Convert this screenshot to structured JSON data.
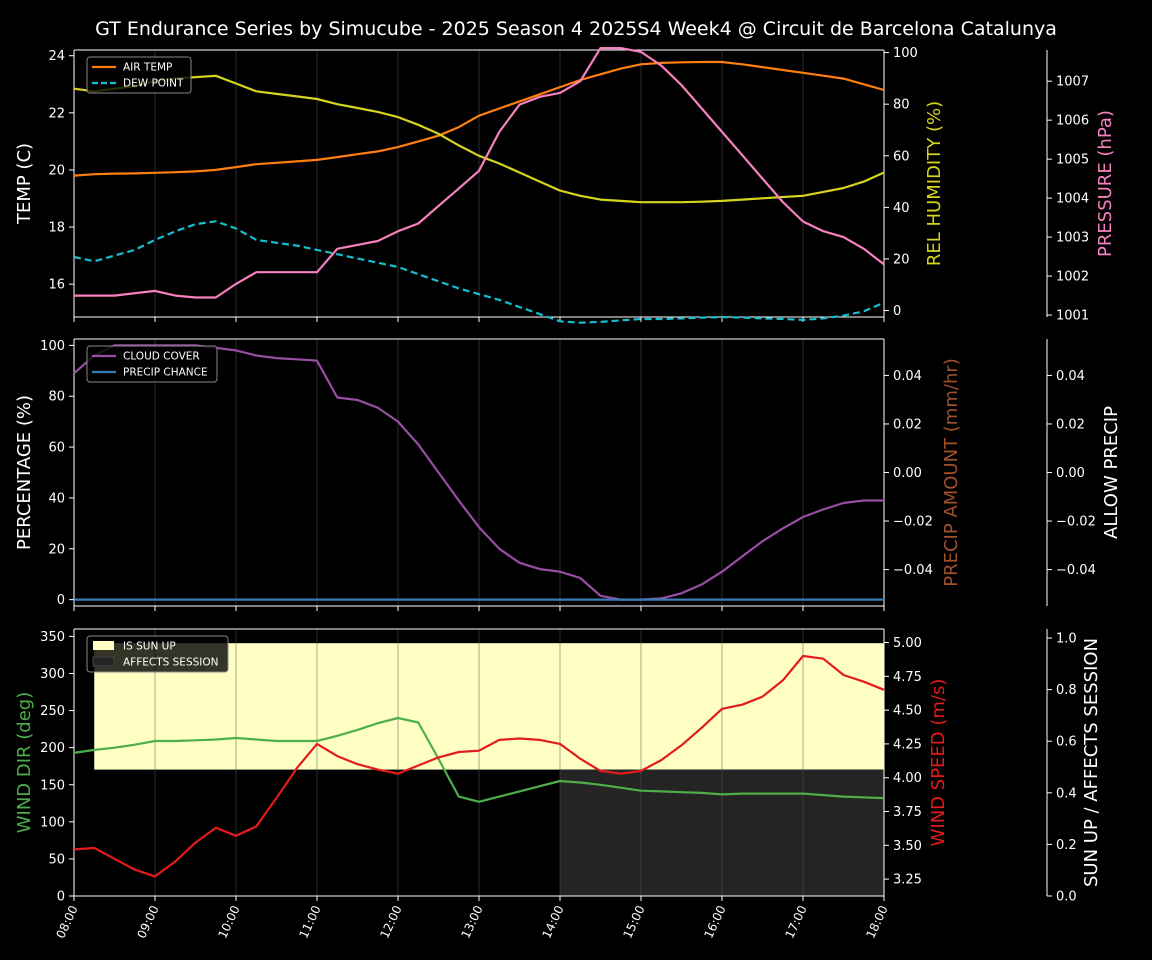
{
  "title": "GT Endurance Series by Simucube - 2025 Season 4 2025S4 Week4 @ Circuit de Barcelona Catalunya",
  "colors": {
    "air_temp": "#ff7f0e",
    "dew_point": "#17becf",
    "humidity": "#d5d51e",
    "pressure": "#f781bf",
    "cloud": "#984ea3",
    "precip_chance": "#377eb8",
    "precip_amount": "#a0522d",
    "wind_dir": "#4daf4a",
    "wind_speed": "#e41a1c",
    "sun_up": "#ffffc4",
    "affects": "#242424"
  },
  "chart_data": [
    {
      "type": "line",
      "ylabel": "TEMP (C)",
      "ylim": [
        14.85,
        24.2
      ],
      "yticks": [
        "16",
        "18",
        "20",
        "22",
        "24"
      ],
      "y2label": "REL HUMIDITY (%)",
      "y2lim": [
        -2.5,
        101
      ],
      "y2ticks": [
        "0",
        "20",
        "40",
        "60",
        "80",
        "100"
      ],
      "y3label": "PRESSURE (hPa)",
      "y3lim": [
        1000.95,
        1007.8
      ],
      "y3ticks": [
        "1001",
        "1002",
        "1003",
        "1004",
        "1005",
        "1006",
        "1007"
      ],
      "legend": [
        "AIR TEMP",
        "DEW POINT"
      ],
      "legend_position": "top-left",
      "series": [
        {
          "name": "AIR TEMP",
          "axis": "left",
          "style": "solid",
          "x": [
            8,
            8.25,
            8.5,
            8.75,
            9,
            9.25,
            9.5,
            9.75,
            10,
            10.25,
            10.5,
            10.75,
            11,
            11.25,
            11.5,
            11.75,
            12,
            12.25,
            12.5,
            12.75,
            13,
            13.25,
            13.5,
            13.75,
            14,
            14.25,
            14.5,
            14.75,
            15,
            15.25,
            15.5,
            15.75,
            16,
            16.25,
            16.5,
            16.75,
            17,
            17.25,
            17.5,
            17.75,
            18
          ],
          "y": [
            19.8,
            19.85,
            19.87,
            19.88,
            19.9,
            19.92,
            19.95,
            20.0,
            20.1,
            20.2,
            20.25,
            20.3,
            20.35,
            20.45,
            20.55,
            20.65,
            20.8,
            21.0,
            21.2,
            21.5,
            21.9,
            22.15,
            22.4,
            22.65,
            22.9,
            23.15,
            23.35,
            23.55,
            23.7,
            23.75,
            23.77,
            23.78,
            23.78,
            23.7,
            23.6,
            23.5,
            23.4,
            23.3,
            23.2,
            23.0,
            22.8
          ]
        },
        {
          "name": "DEW POINT",
          "axis": "left",
          "style": "dashed",
          "x": [
            8,
            8.25,
            8.5,
            8.75,
            9,
            9.25,
            9.5,
            9.75,
            10,
            10.25,
            10.5,
            10.75,
            11,
            11.25,
            11.5,
            11.75,
            12,
            12.25,
            12.5,
            12.75,
            13,
            13.25,
            13.5,
            13.75,
            14,
            14.25,
            14.5,
            14.75,
            15,
            15.25,
            15.5,
            15.75,
            16,
            16.25,
            16.5,
            16.75,
            17,
            17.25,
            17.5,
            17.75,
            18
          ],
          "y": [
            16.95,
            16.8,
            17.0,
            17.2,
            17.55,
            17.85,
            18.1,
            18.2,
            17.95,
            17.55,
            17.45,
            17.35,
            17.2,
            17.05,
            16.9,
            16.75,
            16.6,
            16.35,
            16.1,
            15.85,
            15.65,
            15.45,
            15.2,
            14.95,
            14.7,
            14.65,
            14.68,
            14.73,
            14.78,
            14.78,
            14.8,
            14.83,
            14.85,
            14.83,
            14.8,
            14.78,
            14.75,
            14.8,
            14.9,
            15.05,
            15.35
          ]
        },
        {
          "name": "REL HUMIDITY",
          "axis": "right",
          "style": "solid",
          "x": [
            8,
            8.25,
            8.5,
            8.75,
            9,
            9.25,
            9.5,
            9.75,
            10,
            10.25,
            10.5,
            10.75,
            11,
            11.25,
            11.5,
            11.75,
            12,
            12.25,
            12.5,
            12.75,
            13,
            13.25,
            13.5,
            13.75,
            14,
            14.25,
            14.5,
            14.75,
            15,
            15.25,
            15.5,
            15.75,
            16,
            16.25,
            16.5,
            16.75,
            17,
            17.25,
            17.5,
            17.75,
            18
          ],
          "y": [
            86,
            85,
            86,
            87,
            89,
            90,
            90.5,
            91,
            88,
            85,
            84,
            83,
            82,
            80,
            78.5,
            77,
            75,
            72,
            68.5,
            64,
            60,
            57,
            53.5,
            50,
            46.5,
            44.5,
            43,
            42.5,
            42,
            42,
            42,
            42.2,
            42.5,
            43,
            43.5,
            44,
            44.5,
            46,
            47.5,
            50,
            53.5
          ]
        },
        {
          "name": "PRESSURE",
          "axis": "right2",
          "style": "solid",
          "x": [
            8,
            8.5,
            9,
            9.25,
            9.5,
            9.75,
            10,
            10.25,
            10.5,
            11,
            11.25,
            11.5,
            11.75,
            12,
            12.25,
            12.5,
            12.75,
            13,
            13.25,
            13.5,
            13.75,
            14,
            14.25,
            14.5,
            14.75,
            15,
            15.25,
            15.5,
            15.75,
            16,
            16.25,
            16.5,
            16.75,
            17,
            17.25,
            17.5,
            17.75,
            18
          ],
          "y": [
            1001.5,
            1001.5,
            1001.62,
            1001.5,
            1001.45,
            1001.45,
            1001.8,
            1002.1,
            1002.1,
            1002.1,
            1002.7,
            1002.8,
            1002.9,
            1003.15,
            1003.35,
            1003.8,
            1004.25,
            1004.7,
            1005.7,
            1006.4,
            1006.6,
            1006.7,
            1007.0,
            1007.85,
            1007.85,
            1007.75,
            1007.4,
            1006.9,
            1006.3,
            1005.7,
            1005.1,
            1004.5,
            1003.9,
            1003.4,
            1003.15,
            1003.0,
            1002.7,
            1002.3
          ]
        }
      ]
    },
    {
      "type": "line",
      "ylabel": "PERCENTAGE (%)",
      "ylim": [
        -2.5,
        102.5
      ],
      "yticks": [
        "0",
        "20",
        "40",
        "60",
        "80",
        "100"
      ],
      "y2label": "PRECIP AMOUNT (mm/hr)",
      "y2lim": [
        -0.055,
        0.055
      ],
      "y2ticks": [
        "−0.04",
        "−0.02",
        "0.00",
        "0.02",
        "0.04"
      ],
      "y3label": "ALLOW PRECIP",
      "y3lim": [
        -0.055,
        0.055
      ],
      "y3ticks": [
        "−0.04",
        "−0.02",
        "0.00",
        "0.02",
        "0.04"
      ],
      "legend": [
        "CLOUD COVER",
        "PRECIP CHANCE"
      ],
      "legend_position": "top-left",
      "series": [
        {
          "name": "CLOUD COVER",
          "axis": "left",
          "style": "solid",
          "x": [
            8,
            8.25,
            8.5,
            8.75,
            9,
            9.25,
            9.5,
            9.75,
            10,
            10.25,
            10.5,
            10.75,
            11,
            11.25,
            11.5,
            11.75,
            12,
            12.25,
            12.5,
            12.75,
            13,
            13.25,
            13.5,
            13.75,
            14,
            14.25,
            14.5,
            14.75,
            15,
            15.25,
            15.5,
            15.75,
            16,
            16.25,
            16.5,
            16.75,
            17,
            17.25,
            17.5,
            17.75,
            18
          ],
          "y": [
            89,
            96,
            100,
            100,
            100,
            100,
            100,
            99,
            98,
            96,
            95,
            94.5,
            94,
            79.5,
            78.5,
            75.5,
            70,
            61,
            50,
            39,
            28.5,
            20,
            14.5,
            12,
            11,
            8.5,
            1.5,
            0,
            0,
            0.5,
            2.5,
            6,
            11,
            17,
            23,
            28,
            32.5,
            35.5,
            38,
            39,
            39
          ]
        },
        {
          "name": "PRECIP CHANCE",
          "axis": "left",
          "style": "solid",
          "x": [
            8,
            18
          ],
          "y": [
            0,
            0
          ]
        }
      ]
    },
    {
      "type": "line",
      "ylabel": "WIND DIR (deg)",
      "ylim": [
        0,
        360
      ],
      "yticks": [
        "0",
        "50",
        "100",
        "150",
        "200",
        "250",
        "300",
        "350"
      ],
      "y2label": "WIND SPEED (m/s)",
      "y2lim": [
        3.125,
        5.1
      ],
      "y2ticks": [
        "3.25",
        "3.50",
        "3.75",
        "4.00",
        "4.25",
        "4.50",
        "4.75",
        "5.00"
      ],
      "y3label": "SUN UP / AFFECTS SESSION",
      "y3lim": [
        0,
        1.035
      ],
      "y3ticks": [
        "0.0",
        "0.2",
        "0.4",
        "0.6",
        "0.8",
        "1.0"
      ],
      "legend": [
        "IS SUN UP",
        "AFFECTS SESSION"
      ],
      "legend_position": "top-left",
      "xticks": [
        "08:00",
        "09:00",
        "10:00",
        "11:00",
        "12:00",
        "13:00",
        "14:00",
        "15:00",
        "16:00",
        "17:00",
        "18:00"
      ],
      "sun_up": {
        "start": 8.25,
        "end": 18,
        "low": 0.49,
        "high": 0.98
      },
      "affects_session": {
        "start": 14,
        "end": 18,
        "low": 0,
        "high": 0.49
      },
      "series": [
        {
          "name": "WIND DIR",
          "axis": "left",
          "style": "solid",
          "x": [
            8,
            8.25,
            8.5,
            8.75,
            9,
            9.25,
            9.5,
            9.75,
            10,
            10.25,
            10.5,
            10.75,
            11,
            11.25,
            11.5,
            11.75,
            12,
            12.25,
            12.5,
            12.75,
            13,
            13.25,
            13.5,
            13.75,
            14,
            14.25,
            14.5,
            14.75,
            15,
            15.25,
            15.5,
            15.75,
            16,
            16.25,
            16.5,
            16.75,
            17,
            17.25,
            17.5,
            17.75,
            18
          ],
          "y": [
            193,
            197,
            200,
            204,
            209,
            209,
            210,
            211,
            213,
            211,
            209,
            209,
            209,
            216,
            224,
            233,
            240,
            234,
            185,
            134,
            127,
            134,
            141,
            148,
            155,
            153,
            150,
            146,
            142,
            141,
            140,
            139,
            137,
            138,
            138,
            138,
            138,
            136,
            134,
            133,
            132
          ]
        },
        {
          "name": "WIND SPEED",
          "axis": "right",
          "style": "solid",
          "x": [
            8,
            8.25,
            8.5,
            8.75,
            9,
            9.25,
            9.5,
            9.75,
            10,
            10.25,
            10.5,
            10.75,
            11,
            11.25,
            11.5,
            11.75,
            12,
            12.25,
            12.5,
            12.75,
            13,
            13.25,
            13.5,
            13.75,
            14,
            14.25,
            14.5,
            14.75,
            15,
            15.25,
            15.5,
            15.75,
            16,
            16.25,
            16.5,
            16.75,
            17,
            17.25,
            17.5,
            17.75,
            18
          ],
          "y": [
            3.47,
            3.48,
            3.4,
            3.32,
            3.27,
            3.38,
            3.52,
            3.63,
            3.57,
            3.64,
            3.85,
            4.07,
            4.25,
            4.16,
            4.1,
            4.06,
            4.03,
            4.09,
            4.15,
            4.19,
            4.2,
            4.28,
            4.29,
            4.28,
            4.25,
            4.14,
            4.05,
            4.03,
            4.05,
            4.13,
            4.24,
            4.37,
            4.51,
            4.54,
            4.6,
            4.72,
            4.9,
            4.88,
            4.76,
            4.71,
            4.65
          ]
        }
      ]
    }
  ]
}
